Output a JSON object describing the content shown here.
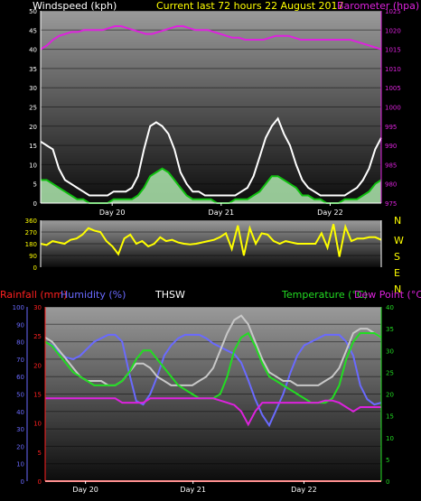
{
  "header": {
    "left_label": "Windspeed (kph)",
    "center_label": "Current last 72 hours 22 August 2017",
    "right_label": "Barometer (hpa)"
  },
  "bottom_header": {
    "rain_label": "Rainfall (mm)",
    "humidity_label": "Humidity (%)",
    "thsw_label": "THSW",
    "temp_label": "Temperature (°C)",
    "dew_label": "Dew Point (°C)"
  },
  "colors": {
    "wind": "#ffffff",
    "gust": "#ffffff",
    "barometer": "#dd22dd",
    "direction": "#ffff00",
    "rain": "#ff2020",
    "humidity": "#6a6aff",
    "thsw": "#c8c8c8",
    "temperature": "#22dd22",
    "dewpoint": "#dd22dd"
  },
  "chart_data": [
    {
      "type": "line",
      "x_tick_labels": [
        "Day 20",
        "Day 21",
        "Day 22"
      ],
      "y_left_label": "Windspeed (kph)",
      "y_left_ticks": [
        0,
        5,
        10,
        15,
        20,
        25,
        30,
        35,
        40,
        45,
        50
      ],
      "y_left_range": [
        0,
        50
      ],
      "y_right_label": "Barometer (hpa)",
      "y_right_ticks": [
        975,
        980,
        985,
        990,
        995,
        1000,
        1005,
        1010,
        1015,
        1020,
        1025
      ],
      "y_right_range": [
        975,
        1025
      ],
      "series": [
        {
          "key": "gust",
          "values": [
            16,
            15,
            14,
            9,
            6,
            5,
            4,
            3,
            2,
            2,
            2,
            2,
            3,
            3,
            3,
            4,
            7,
            14,
            20,
            21,
            20,
            18,
            14,
            8,
            5,
            3,
            3,
            2,
            2,
            2,
            2,
            2,
            2,
            3,
            4,
            7,
            12,
            17,
            20,
            22,
            18,
            15,
            10,
            6,
            4,
            3,
            2,
            2,
            2,
            2,
            2,
            3,
            4,
            6,
            9,
            14,
            17
          ]
        },
        {
          "key": "wind",
          "values": [
            6,
            6,
            5,
            4,
            3,
            2,
            1,
            1,
            0,
            0,
            0,
            0,
            1,
            1,
            1,
            1,
            2,
            4,
            7,
            8,
            9,
            8,
            6,
            4,
            2,
            1,
            1,
            1,
            1,
            0,
            0,
            0,
            1,
            1,
            1,
            2,
            3,
            5,
            7,
            7,
            6,
            5,
            4,
            2,
            2,
            1,
            1,
            0,
            0,
            0,
            1,
            1,
            1,
            2,
            3,
            5,
            6
          ]
        },
        {
          "key": "barometer",
          "values": [
            1015,
            1016,
            1017.5,
            1018.5,
            1019,
            1019.5,
            1019.5,
            1020,
            1020,
            1020,
            1020,
            1020.5,
            1021,
            1021,
            1020.5,
            1020,
            1019.5,
            1019,
            1019,
            1019.5,
            1020,
            1020.5,
            1021,
            1021,
            1020.5,
            1020,
            1020,
            1020,
            1019.5,
            1019,
            1018.5,
            1018,
            1018,
            1017.5,
            1017.5,
            1017.5,
            1017.5,
            1018,
            1018.5,
            1018.5,
            1018.5,
            1018,
            1017.5,
            1017.5,
            1017.5,
            1017.5,
            1017.5,
            1017.5,
            1017.5,
            1017.5,
            1017.5,
            1017,
            1016.5,
            1016,
            1015.5,
            1015
          ]
        }
      ]
    },
    {
      "type": "scatter",
      "x_tick_labels": [
        "Day 20",
        "Day 21",
        "Day 22"
      ],
      "y_left_ticks": [
        0,
        90,
        180,
        270,
        360
      ],
      "y_left_range": [
        0,
        360
      ],
      "y_right_ticks": [
        "N",
        "W",
        "S",
        "E",
        "N"
      ],
      "series": [
        {
          "key": "direction",
          "values": [
            180,
            170,
            200,
            190,
            180,
            210,
            220,
            250,
            300,
            280,
            270,
            200,
            160,
            100,
            220,
            250,
            180,
            200,
            160,
            180,
            230,
            200,
            210,
            190,
            180,
            175,
            180,
            190,
            200,
            210,
            230,
            260,
            140,
            320,
            90,
            300,
            180,
            260,
            250,
            200,
            180,
            200,
            190,
            180,
            180,
            180,
            180,
            260,
            150,
            330,
            80,
            310,
            200,
            220,
            220,
            230,
            230,
            210
          ]
        }
      ]
    },
    {
      "type": "line",
      "x_tick_labels": [
        "Day 20",
        "Day 21",
        "Day 22"
      ],
      "y_humidity_label": "Humidity (%)",
      "y_humidity_ticks": [
        0,
        10,
        20,
        30,
        40,
        50,
        60,
        70,
        80,
        90,
        100
      ],
      "y_humidity_range": [
        0,
        100
      ],
      "y_rain_label": "Rainfall (mm)",
      "y_rain_ticks": [
        0,
        5,
        10,
        15,
        20,
        25,
        30
      ],
      "y_rain_range": [
        0,
        30
      ],
      "y_temp_label": "Temperature (°C)",
      "y_temp_ticks": [
        0,
        5,
        10,
        15,
        20,
        25,
        30,
        35,
        40
      ],
      "y_temp_range": [
        0,
        40
      ],
      "series": [
        {
          "key": "humidity",
          "values": [
            80,
            78,
            74,
            71,
            70,
            72,
            76,
            80,
            82,
            84,
            84,
            80,
            62,
            46,
            44,
            50,
            60,
            72,
            78,
            82,
            84,
            84,
            84,
            82,
            79,
            77,
            75,
            73,
            68,
            58,
            47,
            38,
            32,
            41,
            50,
            62,
            72,
            78,
            80,
            82,
            84,
            84,
            84,
            80,
            72,
            55,
            47,
            44,
            45
          ]
        },
        {
          "key": "thsw",
          "values": [
            33,
            32,
            30,
            28,
            26,
            24,
            23,
            23,
            23,
            22,
            22,
            23,
            25,
            27,
            27,
            26,
            24,
            23,
            22,
            22,
            22,
            22,
            23,
            24,
            26,
            30,
            34,
            37,
            38,
            36,
            32,
            28,
            25,
            24,
            23,
            23,
            22,
            22,
            22,
            22,
            23,
            24,
            26,
            30,
            34,
            35,
            35,
            34,
            33
          ]
        },
        {
          "key": "temperature",
          "values": [
            32,
            31,
            29,
            27,
            25,
            24,
            23,
            22,
            22,
            22,
            22,
            23,
            25,
            28,
            30,
            30,
            28,
            26,
            24,
            22,
            21,
            20,
            19,
            19,
            19,
            20,
            24,
            30,
            33,
            34,
            31,
            27,
            24,
            23,
            22,
            21,
            20,
            19,
            18,
            18,
            18,
            19,
            22,
            28,
            32,
            34,
            34,
            34,
            33
          ]
        },
        {
          "key": "dewpoint",
          "values": [
            19,
            19,
            19,
            19,
            19,
            19,
            19,
            19,
            19,
            19,
            19,
            18,
            18,
            18,
            18,
            19,
            19,
            19,
            19,
            19,
            19,
            19,
            19,
            19,
            19,
            18.5,
            18,
            17.5,
            16,
            13,
            16,
            18,
            18,
            18,
            18,
            18,
            18,
            18,
            18,
            18,
            18.5,
            18.5,
            18,
            17,
            16,
            17,
            17,
            17,
            17
          ]
        },
        {
          "key": "rain",
          "values": [
            0,
            0,
            0,
            0,
            0,
            0,
            0,
            0,
            0,
            0,
            0,
            0,
            0,
            0,
            0,
            0,
            0,
            0,
            0,
            0,
            0,
            0,
            0,
            0,
            0,
            0,
            0,
            0,
            0,
            0,
            0,
            0,
            0,
            0,
            0,
            0,
            0,
            0,
            0,
            0,
            0,
            0,
            0,
            0,
            0,
            0,
            0,
            0,
            0
          ]
        }
      ]
    }
  ]
}
